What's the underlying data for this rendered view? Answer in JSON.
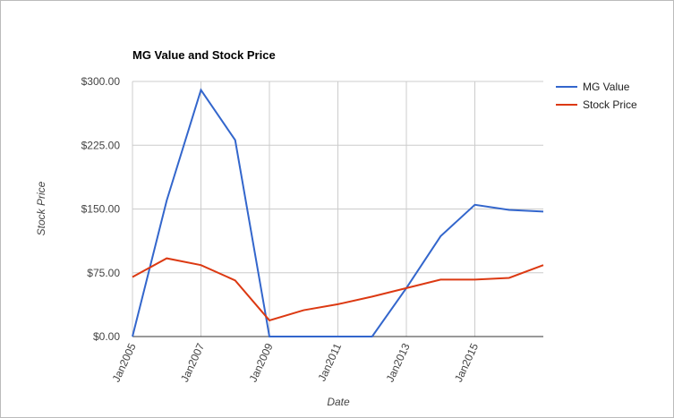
{
  "chart_data": {
    "type": "line",
    "title": "MG Value and Stock Price",
    "x_label": "Date",
    "y_label": "Stock Price",
    "x": [
      2005,
      2006,
      2007,
      2008,
      2009,
      2010,
      2011,
      2012,
      2013,
      2014,
      2015,
      2016,
      2017
    ],
    "series": [
      {
        "name": "MG Value",
        "color": "#3366cc",
        "values": [
          0,
          160,
          290,
          231,
          0,
          0,
          0,
          0,
          57,
          118,
          155,
          149,
          147
        ]
      },
      {
        "name": "Stock Price",
        "color": "#dc3912",
        "values": [
          70,
          92,
          84,
          66,
          19,
          31,
          38,
          47,
          57,
          67,
          67,
          69,
          84
        ]
      }
    ],
    "xlim": [
      2005,
      2017
    ],
    "xticks": [
      {
        "value": 2005,
        "label": "Jan2005"
      },
      {
        "value": 2007,
        "label": "Jan2007"
      },
      {
        "value": 2009,
        "label": "Jan2009"
      },
      {
        "value": 2011,
        "label": "Jan2011"
      },
      {
        "value": 2013,
        "label": "Jan2013"
      },
      {
        "value": 2015,
        "label": "Jan2015"
      }
    ],
    "ylim": [
      0,
      300
    ],
    "yticks": [
      {
        "value": 0,
        "label": "$0.00"
      },
      {
        "value": 75,
        "label": "$75.00"
      },
      {
        "value": 150,
        "label": "$150.00"
      },
      {
        "value": 225,
        "label": "$225.00"
      },
      {
        "value": 300,
        "label": "$300.00"
      }
    ],
    "grid": true,
    "legend": "right"
  }
}
